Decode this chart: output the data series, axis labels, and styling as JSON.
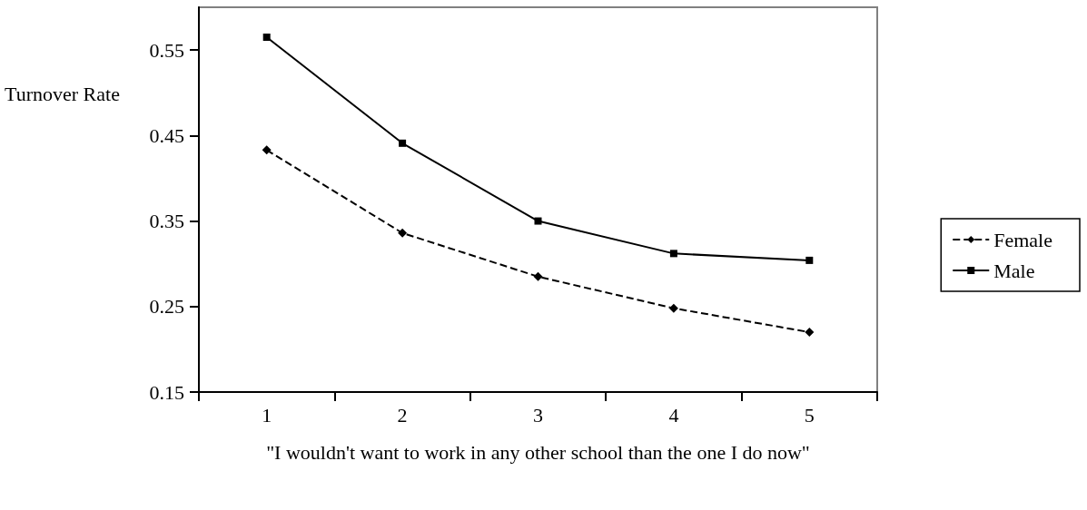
{
  "chart_data": {
    "type": "line",
    "xlabel": "\"I wouldn't want to work in any other school than the one I do now\"",
    "ylabel": "Turnover Rate",
    "categories": [
      "1",
      "2",
      "3",
      "4",
      "5"
    ],
    "series": [
      {
        "name": "Female",
        "color": "#000000",
        "marker": "diamond",
        "line_style": "dashed",
        "values": [
          0.433,
          0.336,
          0.285,
          0.248,
          0.22
        ]
      },
      {
        "name": "Male",
        "color": "#000000",
        "marker": "square",
        "line_style": "solid",
        "values": [
          0.565,
          0.441,
          0.35,
          0.312,
          0.304
        ]
      }
    ],
    "ylim": [
      0.15,
      0.6
    ],
    "yticks": [
      0.15,
      0.25,
      0.35,
      0.45,
      0.55
    ],
    "grid": false,
    "legend": "right"
  }
}
